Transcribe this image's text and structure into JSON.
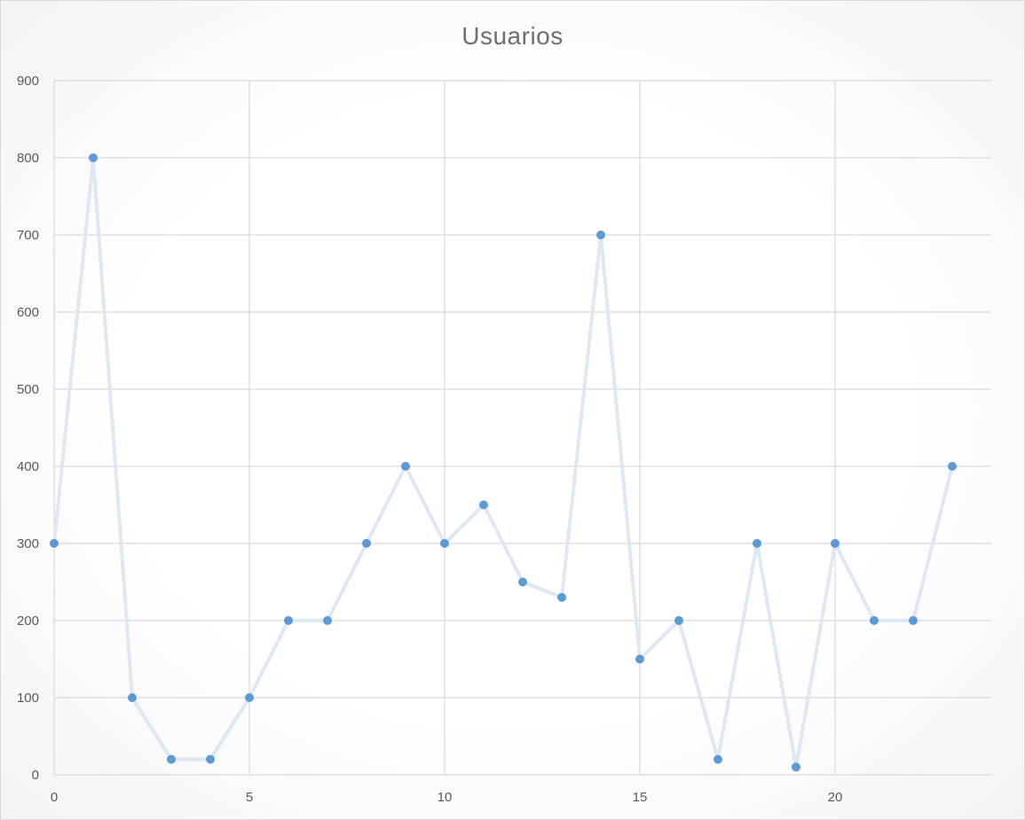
{
  "chart_data": {
    "type": "scatter",
    "title": "Usuarios",
    "xlabel": "",
    "ylabel": "",
    "xlim": [
      0,
      24
    ],
    "ylim": [
      0,
      900
    ],
    "x_ticks": [
      0,
      5,
      10,
      15,
      20
    ],
    "y_ticks": [
      0,
      100,
      200,
      300,
      400,
      500,
      600,
      700,
      800,
      900
    ],
    "grid": true,
    "legend": "none",
    "series": [
      {
        "x": [
          0,
          1,
          2,
          3,
          4,
          5,
          6,
          7,
          8,
          9,
          10,
          11,
          12,
          13,
          14,
          15,
          16,
          17,
          18,
          19,
          20,
          21,
          22,
          23
        ],
        "values": [
          300,
          800,
          100,
          20,
          20,
          100,
          200,
          200,
          300,
          400,
          300,
          350,
          250,
          230,
          700,
          150,
          200,
          20,
          300,
          10,
          300,
          200,
          200,
          400
        ],
        "line_color": "#dce9f5",
        "marker_color": "#5b9bd5"
      }
    ]
  }
}
